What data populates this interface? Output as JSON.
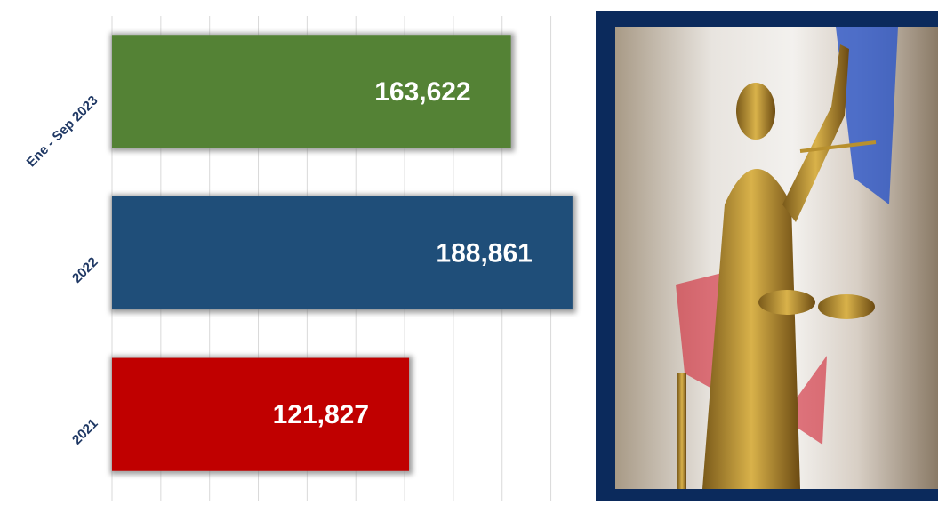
{
  "chart_data": {
    "type": "hbar",
    "categories": [
      "Ene - Sep 2023",
      "2022",
      "2021"
    ],
    "values": [
      163622,
      188861,
      121827
    ],
    "value_labels": [
      "163,622",
      "188,861",
      "121,827"
    ],
    "colors": [
      "#548235",
      "#1f4e79",
      "#c00000"
    ],
    "xlim": [
      0,
      190000
    ],
    "xticks": [
      0,
      20000,
      40000,
      60000,
      80000,
      100000,
      120000,
      140000,
      160000,
      180000
    ],
    "grid": true
  }
}
